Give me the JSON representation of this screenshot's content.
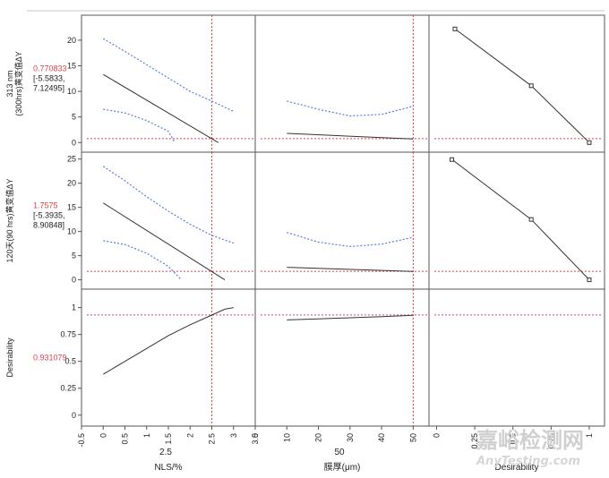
{
  "chart_data": {
    "type": "prediction_profiler",
    "factors": [
      {
        "name": "NLS/%",
        "current": "2.5",
        "ticks": [
          "-0.5",
          "0",
          "0.5",
          "1",
          "1.5",
          "2",
          "2.5",
          "3",
          "3.5"
        ],
        "range": [
          -0.5,
          3.5
        ]
      },
      {
        "name": "膜厚(μm)",
        "current": "50",
        "ticks": [
          "0",
          "10",
          "20",
          "30",
          "40",
          "50"
        ],
        "range": [
          0,
          55
        ]
      },
      {
        "name": "Desirability",
        "current": "",
        "ticks": [
          "0",
          "0.25",
          "0.5",
          "0.75",
          "1"
        ],
        "range": [
          -0.05,
          1.1
        ]
      }
    ],
    "responses": [
      {
        "label_lines": [
          "313 nm",
          "(300hrs)黄变值ΔY"
        ],
        "value": "0.770833",
        "ci_lines": [
          "[-5.5833,",
          "7.12495]"
        ],
        "yticks": [
          "0",
          "5",
          "10",
          "15",
          "20"
        ],
        "ylim": [
          -1,
          24
        ],
        "profiles": [
          {
            "pred": [
              [
                0,
                13.3
              ],
              [
                2.65,
                0
              ]
            ],
            "upper": [
              [
                0,
                20.3
              ],
              [
                0.5,
                17.8
              ],
              [
                1,
                15.2
              ],
              [
                1.5,
                12.6
              ],
              [
                2,
                10
              ],
              [
                2.5,
                8.1
              ],
              [
                3,
                6.1
              ]
            ],
            "lower": [
              [
                0,
                6.5
              ],
              [
                0.5,
                5.8
              ],
              [
                1,
                4.3
              ],
              [
                1.5,
                2.2
              ],
              [
                1.65,
                0
              ]
            ]
          },
          {
            "pred": [
              [
                10,
                1.8
              ],
              [
                50,
                0.7
              ]
            ],
            "upper": [
              [
                10,
                8.1
              ],
              [
                20,
                6.5
              ],
              [
                30,
                5.2
              ],
              [
                40,
                5.5
              ],
              [
                50,
                7.1
              ]
            ],
            "lower": []
          },
          {
            "pred": [
              [
                0.12,
                22.2
              ],
              [
                0.62,
                11.1
              ],
              [
                1,
                0
              ]
            ],
            "markers": [
              [
                0.12,
                22.2
              ],
              [
                0.62,
                11.1
              ],
              [
                1,
                0
              ]
            ]
          }
        ],
        "ref_y": 0.77
      },
      {
        "label_lines": [
          "120天(90 hrs)黄变值ΔY"
        ],
        "value": "1.7575",
        "ci_lines": [
          "[-5.3935,",
          "8.90848]"
        ],
        "yticks": [
          "0",
          "5",
          "10",
          "15",
          "20",
          "25"
        ],
        "ylim": [
          -1,
          25.5
        ],
        "profiles": [
          {
            "pred": [
              [
                0,
                15.9
              ],
              [
                2.8,
                0
              ]
            ],
            "upper": [
              [
                0,
                23.5
              ],
              [
                0.5,
                20.5
              ],
              [
                1,
                17.2
              ],
              [
                1.5,
                14.2
              ],
              [
                2,
                11.5
              ],
              [
                2.5,
                9.2
              ],
              [
                3,
                7.6
              ]
            ],
            "lower": [
              [
                0,
                8.1
              ],
              [
                0.5,
                7.3
              ],
              [
                1,
                5.5
              ],
              [
                1.5,
                2.8
              ],
              [
                1.8,
                0
              ]
            ]
          },
          {
            "pred": [
              [
                10,
                2.6
              ],
              [
                50,
                1.75
              ]
            ],
            "upper": [
              [
                10,
                9.8
              ],
              [
                20,
                7.8
              ],
              [
                30,
                6.9
              ],
              [
                40,
                7.4
              ],
              [
                50,
                8.8
              ]
            ],
            "lower": []
          },
          {
            "pred": [
              [
                0.1,
                24.9
              ],
              [
                0.62,
                12.5
              ],
              [
                1,
                0
              ]
            ],
            "markers": [
              [
                0.1,
                24.9
              ],
              [
                0.62,
                12.5
              ],
              [
                1,
                0
              ]
            ]
          }
        ],
        "ref_y": 1.7575
      },
      {
        "label_lines": [
          "Desirability"
        ],
        "value": "0.931079",
        "ci_lines": [],
        "yticks": [
          "0",
          "0.25",
          "0.5",
          "0.75",
          "1"
        ],
        "ylim": [
          -0.06,
          1.13
        ],
        "profiles": [
          {
            "pred": [
              [
                0,
                0.38
              ],
              [
                0.5,
                0.5
              ],
              [
                1,
                0.62
              ],
              [
                1.5,
                0.74
              ],
              [
                2,
                0.84
              ],
              [
                2.5,
                0.93
              ],
              [
                2.8,
                0.985
              ],
              [
                3,
                1.0
              ]
            ]
          },
          {
            "pred": [
              [
                10,
                0.885
              ],
              [
                20,
                0.895
              ],
              [
                30,
                0.905
              ],
              [
                40,
                0.915
              ],
              [
                50,
                0.928
              ]
            ]
          },
          {
            "pred": []
          }
        ],
        "ref_y": 0.931
      }
    ],
    "current_x": [
      2.5,
      50
    ]
  },
  "watermark": {
    "line1": "嘉峪检测网",
    "line2": "AnyTesting.com"
  },
  "colors": {
    "pred": "#333333",
    "ci": "#5b7de0",
    "ref": "#e0404c",
    "frame": "#555555",
    "grid_rule": "#bbbbbb"
  }
}
